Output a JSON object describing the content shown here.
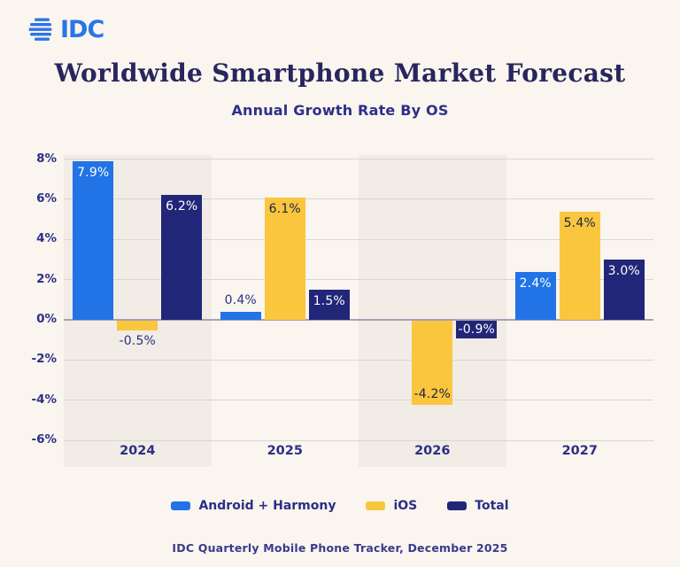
{
  "logo": {
    "text": "IDC"
  },
  "header": {
    "title": "Worldwide Smartphone Market Forecast",
    "subtitle": "Annual Growth Rate By OS"
  },
  "footer": {
    "source": "IDC Quarterly Mobile Phone Tracker, December 2025"
  },
  "colors": {
    "background": "#FAF5EE",
    "shaded_band": "#F1ECE5",
    "gridline": "#D8D5E0",
    "zero_line": "#A5A3B8",
    "axis_text": "#2B2F86",
    "android_blue": "#2173E6",
    "ios_yellow": "#F9C63E",
    "total_navy": "#212678",
    "logo_blue": "#2A75E8"
  },
  "chart_data": {
    "type": "bar",
    "title": "Worldwide Smartphone Market Forecast",
    "subtitle": "Annual Growth Rate By OS",
    "xlabel": "",
    "ylabel": "",
    "categories": [
      "2024",
      "2025",
      "2026",
      "2027"
    ],
    "series": [
      {
        "name": "Android + Harmony",
        "color": "#2173E6",
        "values": [
          7.9,
          0.4,
          null,
          2.4
        ],
        "labels": [
          "7.9%",
          "0.4%",
          "",
          "2.4%"
        ],
        "label_pos": [
          "inside",
          "outside",
          "none",
          "inside"
        ],
        "label_inside_color": "#FFFFFF"
      },
      {
        "name": "iOS",
        "color": "#F9C63E",
        "values": [
          -0.5,
          6.1,
          -4.2,
          5.4
        ],
        "labels": [
          "-0.5%",
          "6.1%",
          "-4.2%",
          "5.4%"
        ],
        "label_pos": [
          "outside",
          "inside",
          "inside",
          "inside"
        ],
        "label_inside_color": "#1E2240"
      },
      {
        "name": "Total",
        "color": "#212678",
        "values": [
          6.2,
          1.5,
          -0.9,
          3.0
        ],
        "labels": [
          "6.2%",
          "1.5%",
          "-0.9%",
          "3.0%"
        ],
        "label_pos": [
          "inside",
          "inside",
          "inside",
          "inside"
        ],
        "label_inside_color": "#FFFFFF"
      }
    ],
    "y_ticks": [
      "8%",
      "6%",
      "4%",
      "2%",
      "0%",
      "-2%",
      "-4%",
      "-6%"
    ],
    "y_tick_values": [
      8,
      6,
      4,
      2,
      0,
      -2,
      -4,
      -6
    ],
    "ylim": [
      -6.6,
      8.2
    ],
    "grid": true,
    "legend_position": "bottom",
    "shaded_band_indexes": [
      0,
      2
    ]
  },
  "legend": {
    "items": [
      {
        "label": "Android + Harmony",
        "color": "#2173E6"
      },
      {
        "label": "iOS",
        "color": "#F9C63E"
      },
      {
        "label": "Total",
        "color": "#212678"
      }
    ]
  }
}
